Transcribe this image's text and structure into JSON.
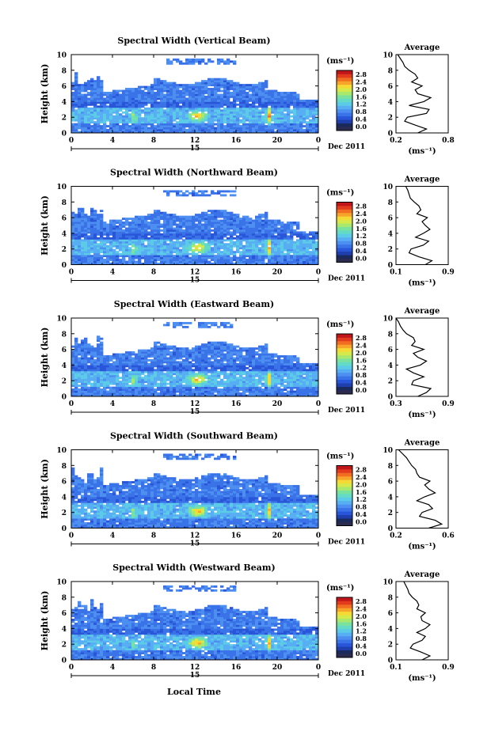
{
  "figure": {
    "date_label": "Dec 2011",
    "day_label": "15",
    "xlabel": "Local Time",
    "ylabel": "Height (km)",
    "colorbar_unit": "(ms⁻¹)",
    "avg_title": "Average",
    "avg_xlabel": "(ms⁻¹)"
  },
  "colors": {
    "colormap": [
      "#1a2a5c",
      "#1f3fae",
      "#2956d8",
      "#3a72e8",
      "#4c8ff0",
      "#58aef2",
      "#5ccbe8",
      "#63dbc7",
      "#7ae29f",
      "#a8e86d",
      "#d6e94a",
      "#f5d935",
      "#f7a52a",
      "#f06d22",
      "#e23a1c",
      "#c0161a"
    ],
    "background_field": "#2f57d6"
  },
  "chart_data": [
    {
      "type": "heatmap",
      "title": "Spectral Width (Vertical Beam)",
      "x_ticks": [
        "0",
        "4",
        "8",
        "12",
        "16",
        "20",
        "0"
      ],
      "xlim": [
        0,
        24
      ],
      "y_ticks": [
        "0",
        "2",
        "4",
        "6",
        "8",
        "10"
      ],
      "ylim": [
        0,
        10
      ],
      "colorbar_ticks": [
        "0.0",
        "0.4",
        "0.8",
        "1.2",
        "1.6",
        "2.0",
        "2.4",
        "2.8"
      ],
      "colorbar_range": [
        0,
        2.8
      ],
      "average": {
        "x_ticks": [
          "0.2",
          "0.8"
        ],
        "xlim": [
          0.2,
          0.8
        ],
        "height": [
          0,
          0.5,
          1,
          1.5,
          2,
          2.5,
          3,
          3.5,
          4,
          4.5,
          5,
          5.5,
          6,
          6.5,
          7,
          7.5,
          8,
          8.5,
          9,
          9.5,
          10
        ],
        "value": [
          0.45,
          0.55,
          0.42,
          0.3,
          0.33,
          0.55,
          0.58,
          0.35,
          0.52,
          0.6,
          0.45,
          0.42,
          0.5,
          0.38,
          0.45,
          0.42,
          0.35,
          0.3,
          0.28,
          0.25,
          0.22
        ]
      }
    },
    {
      "type": "heatmap",
      "title": "Spectral Width (Northward Beam)",
      "x_ticks": [
        "0",
        "4",
        "8",
        "12",
        "16",
        "20",
        "0"
      ],
      "xlim": [
        0,
        24
      ],
      "y_ticks": [
        "0",
        "2",
        "4",
        "6",
        "8",
        "10"
      ],
      "ylim": [
        0,
        10
      ],
      "colorbar_ticks": [
        "0.0",
        "0.4",
        "0.8",
        "1.2",
        "1.6",
        "2.0",
        "2.4",
        "2.8"
      ],
      "colorbar_range": [
        0,
        2.8
      ],
      "average": {
        "x_ticks": [
          "0.1",
          "0.9"
        ],
        "xlim": [
          0.1,
          0.9
        ],
        "height": [
          0,
          0.5,
          1,
          1.5,
          2,
          2.5,
          3,
          3.5,
          4,
          4.5,
          5,
          5.5,
          6,
          6.5,
          7,
          7.5,
          8,
          8.5,
          9,
          9.5,
          10
        ],
        "value": [
          0.55,
          0.65,
          0.45,
          0.3,
          0.33,
          0.52,
          0.6,
          0.4,
          0.52,
          0.62,
          0.55,
          0.5,
          0.58,
          0.42,
          0.48,
          0.45,
          0.38,
          0.32,
          0.3,
          0.28,
          0.25
        ]
      }
    },
    {
      "type": "heatmap",
      "title": "Spectral Width (Eastward Beam)",
      "x_ticks": [
        "0",
        "4",
        "8",
        "12",
        "16",
        "20",
        "0"
      ],
      "xlim": [
        0,
        24
      ],
      "y_ticks": [
        "0",
        "2",
        "4",
        "6",
        "8",
        "10"
      ],
      "ylim": [
        0,
        10
      ],
      "colorbar_ticks": [
        "0.0",
        "0.4",
        "0.8",
        "1.2",
        "1.6",
        "2.0",
        "2.4",
        "2.8"
      ],
      "colorbar_range": [
        0,
        2.8
      ],
      "average": {
        "x_ticks": [
          "0.3",
          "0.9"
        ],
        "xlim": [
          0.3,
          0.9
        ],
        "height": [
          0,
          0.5,
          1,
          1.5,
          2,
          2.5,
          3,
          3.5,
          4,
          4.5,
          5,
          5.5,
          6,
          6.5,
          7,
          7.5,
          8,
          8.5,
          9,
          9.5,
          10
        ],
        "value": [
          0.55,
          0.65,
          0.7,
          0.48,
          0.5,
          0.62,
          0.5,
          0.42,
          0.58,
          0.65,
          0.55,
          0.5,
          0.62,
          0.48,
          0.52,
          0.5,
          0.42,
          0.38,
          0.35,
          0.33,
          0.3
        ]
      }
    },
    {
      "type": "heatmap",
      "title": "Spectral Width (Southward Beam)",
      "x_ticks": [
        "0",
        "4",
        "8",
        "12",
        "16",
        "20",
        "0"
      ],
      "xlim": [
        0,
        24
      ],
      "y_ticks": [
        "0",
        "2",
        "4",
        "6",
        "8",
        "10"
      ],
      "ylim": [
        0,
        10
      ],
      "colorbar_ticks": [
        "0.0",
        "0.4",
        "0.8",
        "1.2",
        "1.6",
        "2.0",
        "2.4",
        "2.8"
      ],
      "colorbar_range": [
        0,
        2.8
      ],
      "average": {
        "x_ticks": [
          "0.2",
          "0.6"
        ],
        "xlim": [
          0.2,
          0.6
        ],
        "height": [
          0,
          0.5,
          1,
          1.5,
          2,
          2.5,
          3,
          3.5,
          4,
          4.5,
          5,
          5.5,
          6,
          6.5,
          7,
          7.5,
          8,
          8.5,
          9,
          9.5,
          10
        ],
        "value": [
          0.45,
          0.55,
          0.5,
          0.38,
          0.4,
          0.48,
          0.45,
          0.36,
          0.42,
          0.5,
          0.45,
          0.42,
          0.46,
          0.38,
          0.36,
          0.35,
          0.32,
          0.3,
          0.28,
          0.25,
          0.22
        ]
      }
    },
    {
      "type": "heatmap",
      "title": "Spectral Width (Westward Beam)",
      "x_ticks": [
        "0",
        "4",
        "8",
        "12",
        "16",
        "20",
        "0"
      ],
      "xlim": [
        0,
        24
      ],
      "y_ticks": [
        "0",
        "2",
        "4",
        "6",
        "8",
        "10"
      ],
      "ylim": [
        0,
        10
      ],
      "colorbar_ticks": [
        "0.0",
        "0.4",
        "0.8",
        "1.2",
        "1.6",
        "2.0",
        "2.4",
        "2.8"
      ],
      "colorbar_range": [
        0,
        2.8
      ],
      "average": {
        "x_ticks": [
          "0.1",
          "0.9"
        ],
        "xlim": [
          0.1,
          0.9
        ],
        "height": [
          0,
          0.5,
          1,
          1.5,
          2,
          2.5,
          3,
          3.5,
          4,
          4.5,
          5,
          5.5,
          6,
          6.5,
          7,
          7.5,
          8,
          8.5,
          9,
          9.5,
          10
        ],
        "value": [
          0.5,
          0.62,
          0.48,
          0.32,
          0.36,
          0.5,
          0.55,
          0.42,
          0.55,
          0.62,
          0.5,
          0.48,
          0.55,
          0.42,
          0.45,
          0.42,
          0.35,
          0.3,
          0.28,
          0.25,
          0.22
        ]
      }
    }
  ]
}
